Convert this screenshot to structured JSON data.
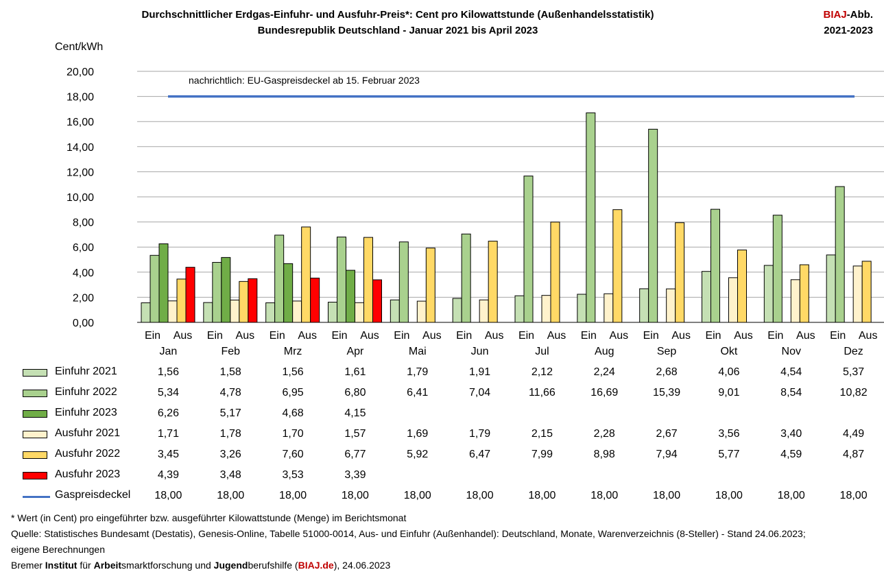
{
  "header": {
    "title_line1": "Durchschnittlicher Erdgas-Einfuhr- und Ausfuhr-Preis*: Cent pro Kilowattstunde  (Außenhandelsstatistik)",
    "title_line2": "Bundesrepublik Deutschland - Januar 2021 bis April 2023",
    "biaj_red": "BIAJ",
    "biaj_rest": "-Abb.",
    "biaj_line2": "2021-2023"
  },
  "chart_data": {
    "type": "bar",
    "ylabel": "Cent/kWh",
    "ylim": [
      0,
      20
    ],
    "yticks": [
      "0,00",
      "2,00",
      "4,00",
      "6,00",
      "8,00",
      "10,00",
      "12,00",
      "14,00",
      "16,00",
      "18,00",
      "20,00"
    ],
    "grid": true,
    "categories": [
      "Jan",
      "Feb",
      "Mrz",
      "Apr",
      "Mai",
      "Jun",
      "Jul",
      "Aug",
      "Sep",
      "Okt",
      "Nov",
      "Dez"
    ],
    "sub_labels": [
      "Ein",
      "Aus"
    ],
    "series": [
      {
        "name": "Einfuhr 2021",
        "group": "Ein",
        "color": "#c5e0b4",
        "values": [
          1.56,
          1.58,
          1.56,
          1.61,
          1.79,
          1.91,
          2.12,
          2.24,
          2.68,
          4.06,
          4.54,
          5.37
        ],
        "labels": [
          "1,56",
          "1,58",
          "1,56",
          "1,61",
          "1,79",
          "1,91",
          "2,12",
          "2,24",
          "2,68",
          "4,06",
          "4,54",
          "5,37"
        ]
      },
      {
        "name": "Einfuhr 2022",
        "group": "Ein",
        "color": "#a9d18e",
        "values": [
          5.34,
          4.78,
          6.95,
          6.8,
          6.41,
          7.04,
          11.66,
          16.69,
          15.39,
          9.01,
          8.54,
          10.82
        ],
        "labels": [
          "5,34",
          "4,78",
          "6,95",
          "6,80",
          "6,41",
          "7,04",
          "11,66",
          "16,69",
          "15,39",
          "9,01",
          "8,54",
          "10,82"
        ]
      },
      {
        "name": "Einfuhr 2023",
        "group": "Ein",
        "color": "#70ad47",
        "values": [
          6.26,
          5.17,
          4.68,
          4.15,
          null,
          null,
          null,
          null,
          null,
          null,
          null,
          null
        ],
        "labels": [
          "6,26",
          "5,17",
          "4,68",
          "4,15",
          "",
          "",
          "",
          "",
          "",
          "",
          "",
          ""
        ]
      },
      {
        "name": "Ausfuhr 2021",
        "group": "Aus",
        "color": "#fff2cc",
        "values": [
          1.71,
          1.78,
          1.7,
          1.57,
          1.69,
          1.79,
          2.15,
          2.28,
          2.67,
          3.56,
          3.4,
          4.49
        ],
        "labels": [
          "1,71",
          "1,78",
          "1,70",
          "1,57",
          "1,69",
          "1,79",
          "2,15",
          "2,28",
          "2,67",
          "3,56",
          "3,40",
          "4,49"
        ]
      },
      {
        "name": "Ausfuhr 2022",
        "group": "Aus",
        "color": "#ffd966",
        "values": [
          3.45,
          3.26,
          7.6,
          6.77,
          5.92,
          6.47,
          7.99,
          8.98,
          7.94,
          5.77,
          4.59,
          4.87
        ],
        "labels": [
          "3,45",
          "3,26",
          "7,60",
          "6,77",
          "5,92",
          "6,47",
          "7,99",
          "8,98",
          "7,94",
          "5,77",
          "4,59",
          "4,87"
        ]
      },
      {
        "name": "Ausfuhr 2023",
        "group": "Aus",
        "color": "#ff0000",
        "values": [
          4.39,
          3.48,
          3.53,
          3.39,
          null,
          null,
          null,
          null,
          null,
          null,
          null,
          null
        ],
        "labels": [
          "4,39",
          "3,48",
          "3,53",
          "3,39",
          "",
          "",
          "",
          "",
          "",
          "",
          "",
          ""
        ]
      },
      {
        "name": "Gaspreisdeckel",
        "type": "line",
        "color": "#4472c4",
        "values": [
          18,
          18,
          18,
          18,
          18,
          18,
          18,
          18,
          18,
          18,
          18,
          18
        ],
        "labels": [
          "18,00",
          "18,00",
          "18,00",
          "18,00",
          "18,00",
          "18,00",
          "18,00",
          "18,00",
          "18,00",
          "18,00",
          "18,00",
          "18,00"
        ]
      }
    ],
    "annotation": "nachrichtlich: EU-Gaspreisdeckel ab 15. Februar 2023"
  },
  "notes": {
    "line1": "* Wert (in Cent) pro eingeführter bzw. ausgeführter Kilowattstunde (Menge) im Berichtsmonat",
    "line2": "Quelle: Statistisches Bundesamt (Destatis), Genesis-Online, Tabelle 51000-0014, Aus- und Einfuhr (Außenhandel): Deutschland, Monate, Warenverzeichnis (8-Steller) - Stand 24.06.2023;",
    "line3": "eigene Berechnungen",
    "credit": {
      "p1": "Bremer ",
      "b1": "Institut",
      "p2": " für ",
      "b2": "Arbeit",
      "p3": "smarktforschung und ",
      "b3": "Jugend",
      "p4": "berufshilfe (",
      "link": "BIAJ.de",
      "p5": "), 24.06.2023"
    }
  }
}
